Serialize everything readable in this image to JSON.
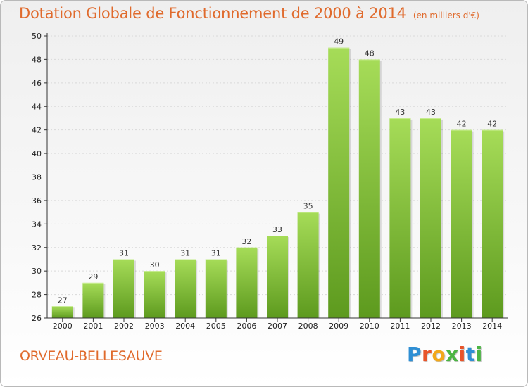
{
  "header": {
    "title": "Dotation Globale de Fonctionnement de 2000 à 2014",
    "subtitle": "(en milliers d'€)"
  },
  "footer": {
    "commune": "ORVEAU-BELLESAUVE",
    "logo_text": "Proxiti"
  },
  "colors": {
    "title": "#e06a2c",
    "bar_light": "#9fd653",
    "bar_dark": "#5d9a1e",
    "grid": "#dddddd",
    "axis": "#333333"
  },
  "chart_data": {
    "type": "bar",
    "title": "Dotation Globale de Fonctionnement de 2000 à 2014",
    "subtitle": "(en milliers d'€)",
    "xlabel": "",
    "ylabel": "",
    "categories": [
      "2000",
      "2001",
      "2002",
      "2003",
      "2004",
      "2005",
      "2006",
      "2007",
      "2008",
      "2009",
      "2010",
      "2011",
      "2012",
      "2013",
      "2014"
    ],
    "values": [
      27,
      29,
      31,
      30,
      31,
      31,
      32,
      33,
      35,
      49,
      48,
      43,
      43,
      42,
      42
    ],
    "ylim": [
      26,
      50
    ],
    "yticks": [
      26,
      28,
      30,
      32,
      34,
      36,
      38,
      40,
      42,
      44,
      46,
      48,
      50
    ],
    "grid": true,
    "data_labels": true
  }
}
